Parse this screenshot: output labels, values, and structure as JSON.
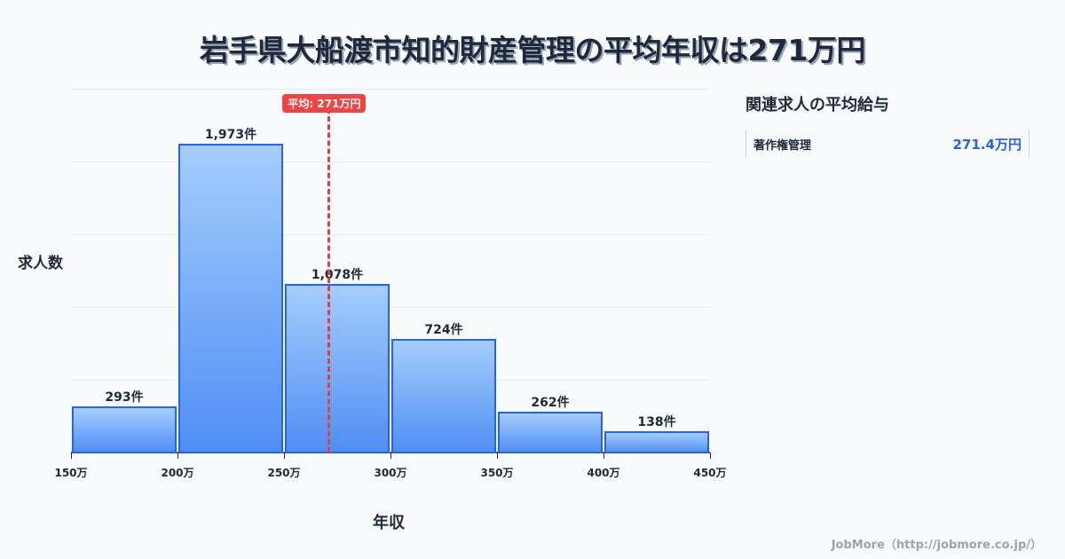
{
  "title": "岩手県大船渡市知的財産管理の平均年収は271万円",
  "chart_data": {
    "type": "bar",
    "title": "岩手県大船渡市知的財産管理の平均年収は271万円",
    "xlabel": "年収",
    "ylabel": "求人数",
    "categories": [
      "150-200万",
      "200-250万",
      "250-300万",
      "300-350万",
      "350-400万",
      "400-450万"
    ],
    "values": [
      293,
      1973,
      1078,
      724,
      262,
      138
    ],
    "value_labels": [
      "293件",
      "1,973件",
      "1,078件",
      "724件",
      "262件",
      "138件"
    ],
    "x_ticks": [
      "150万",
      "200万",
      "250万",
      "300万",
      "350万",
      "400万",
      "450万"
    ],
    "xlim": [
      150,
      450
    ],
    "grid": true,
    "mean": {
      "value": 271,
      "label": "平均: 271万円"
    },
    "bar_color": "#4f8ef5",
    "bar_border_color": "#2563eb",
    "mean_color": "#ef4444"
  },
  "sidebar": {
    "title": "関連求人の平均給与",
    "items": [
      {
        "name": "著作権管理",
        "value": "271.4万円"
      }
    ]
  },
  "footer": "JobMore（http://jobmore.co.jp/）"
}
